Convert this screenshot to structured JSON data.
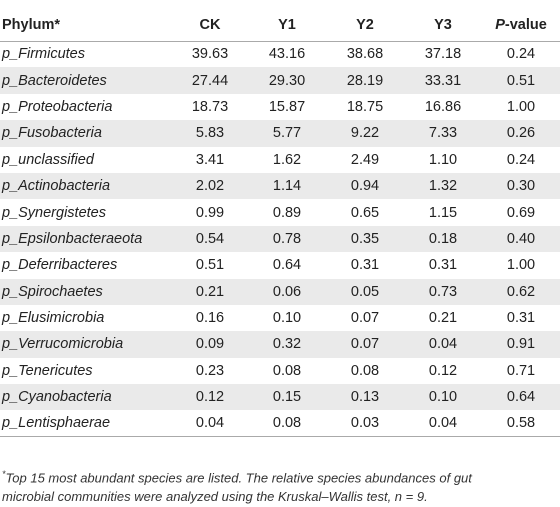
{
  "table": {
    "headers": {
      "phylum": "Phylum*",
      "ck": "CK",
      "y1": "Y1",
      "y2": "Y2",
      "y3": "Y3",
      "p_letter": "P",
      "p_suffix": "-value"
    },
    "rows": [
      [
        "p_Firmicutes",
        "39.63",
        "43.16",
        "38.68",
        "37.18",
        "0.24"
      ],
      [
        "p_Bacteroidetes",
        "27.44",
        "29.30",
        "28.19",
        "33.31",
        "0.51"
      ],
      [
        "p_Proteobacteria",
        "18.73",
        "15.87",
        "18.75",
        "16.86",
        "1.00"
      ],
      [
        "p_Fusobacteria",
        "5.83",
        "5.77",
        "9.22",
        "7.33",
        "0.26"
      ],
      [
        "p_unclassified",
        "3.41",
        "1.62",
        "2.49",
        "1.10",
        "0.24"
      ],
      [
        "p_Actinobacteria",
        "2.02",
        "1.14",
        "0.94",
        "1.32",
        "0.30"
      ],
      [
        "p_Synergistetes",
        "0.99",
        "0.89",
        "0.65",
        "1.15",
        "0.69"
      ],
      [
        "p_Epsilonbacteraeota",
        "0.54",
        "0.78",
        "0.35",
        "0.18",
        "0.40"
      ],
      [
        "p_Deferribacteres",
        "0.51",
        "0.64",
        "0.31",
        "0.31",
        "1.00"
      ],
      [
        "p_Spirochaetes",
        "0.21",
        "0.06",
        "0.05",
        "0.73",
        "0.62"
      ],
      [
        "p_Elusimicrobia",
        "0.16",
        "0.10",
        "0.07",
        "0.21",
        "0.31"
      ],
      [
        "p_Verrucomicrobia",
        "0.09",
        "0.32",
        "0.07",
        "0.04",
        "0.91"
      ],
      [
        "p_Tenericutes",
        "0.23",
        "0.08",
        "0.08",
        "0.12",
        "0.71"
      ],
      [
        "p_Cyanobacteria",
        "0.12",
        "0.15",
        "0.13",
        "0.10",
        "0.64"
      ],
      [
        "p_Lentisphaerae",
        "0.04",
        "0.08",
        "0.03",
        "0.04",
        "0.58"
      ]
    ],
    "row_colors": {
      "alternate": "#eaeaea",
      "normal": "#ffffff"
    }
  },
  "footnote": {
    "marker": "*",
    "line1": "Top 15 most abundant species are listed. The relative species abundances of gut",
    "line2": "microbial communities were analyzed using the Kruskal–Wallis test, n = 9."
  }
}
